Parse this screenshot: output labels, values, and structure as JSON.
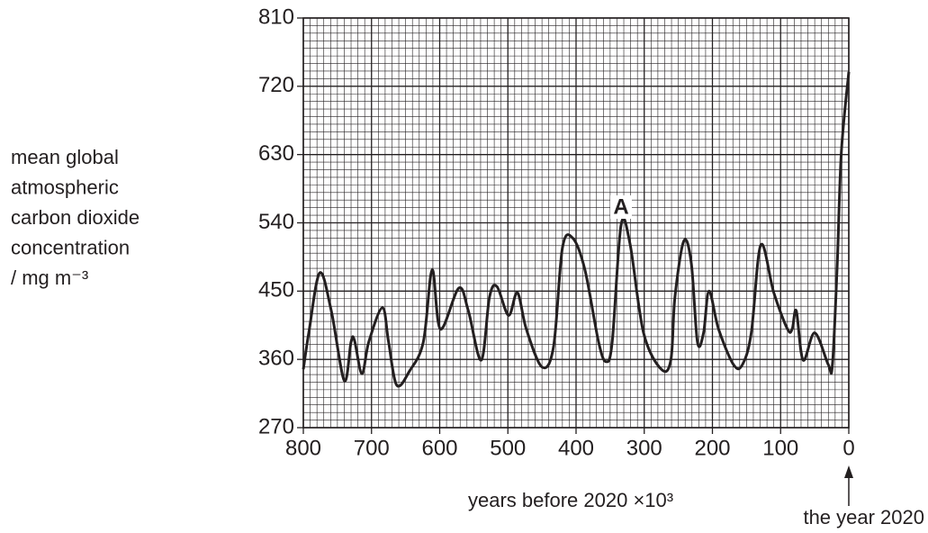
{
  "chart_data": {
    "type": "line",
    "y_label_lines": [
      "mean global",
      "atmospheric",
      "carbon dioxide",
      "concentration",
      "/ mg m⁻³"
    ],
    "x_label": "years before 2020 ×10³",
    "annotations": [
      {
        "text": "A",
        "x": 334,
        "y": 537
      },
      {
        "text": "the year 2020",
        "x": 0
      }
    ],
    "x": [
      800,
      792,
      776,
      759,
      740,
      730,
      725,
      714,
      704,
      684,
      675,
      663,
      644,
      624,
      611,
      599,
      572,
      558,
      539,
      527,
      516,
      499,
      486,
      473,
      450,
      433,
      420,
      405,
      387,
      367,
      356,
      347,
      334,
      321,
      301,
      275,
      261,
      255,
      242,
      231,
      222,
      213,
      205,
      191,
      169,
      156,
      143,
      129,
      110,
      90,
      83,
      77,
      67,
      50,
      30,
      24,
      17,
      11,
      0
    ],
    "series": [
      {
        "color": "#231f20",
        "values": [
          347,
          395,
          474,
          424,
          332,
          383,
          385,
          341,
          383,
          428,
          383,
          326,
          345,
          383,
          478,
          400,
          454,
          424,
          359,
          442,
          456,
          418,
          448,
          400,
          350,
          377,
          507,
          520,
          478,
          383,
          357,
          383,
          537,
          513,
          395,
          347,
          359,
          442,
          516,
          487,
          383,
          395,
          450,
          400,
          353,
          353,
          395,
          511,
          448,
          400,
          400,
          424,
          359,
          395,
          353,
          353,
          484,
          632,
          739
        ]
      }
    ],
    "xlim": [
      800,
      0
    ],
    "ylim": [
      270,
      810
    ],
    "xticks": [
      800,
      700,
      600,
      500,
      400,
      300,
      200,
      100,
      0
    ],
    "yticks": [
      270,
      360,
      450,
      540,
      630,
      720,
      810
    ],
    "grid": true
  }
}
